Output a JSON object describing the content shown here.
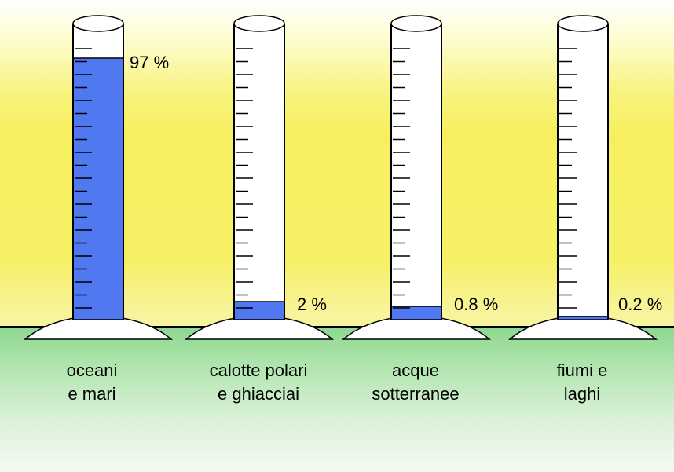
{
  "colors": {
    "water": "#5078f0",
    "ground": "#a8e2a6",
    "sky": "#f6f061"
  },
  "chart_data": {
    "type": "bar",
    "unit": "%",
    "categories": [
      "oceani e mari",
      "calotte polari e ghiacciai",
      "acque sotterranee",
      "fiumi e laghi"
    ],
    "values": [
      97,
      2,
      0.8,
      0.2
    ],
    "items": [
      {
        "line1": "oceani",
        "line2": "e mari",
        "value": 97,
        "value_label": "97 %"
      },
      {
        "line1": "calotte polari",
        "line2": "e ghiacciai",
        "value": 2,
        "value_label": "2 %"
      },
      {
        "line1": "acque",
        "line2": "sotterranee",
        "value": 0.8,
        "value_label": "0.8 %"
      },
      {
        "line1": "fiumi e",
        "line2": "laghi",
        "value": 0.2,
        "value_label": "0.2 %"
      }
    ]
  }
}
